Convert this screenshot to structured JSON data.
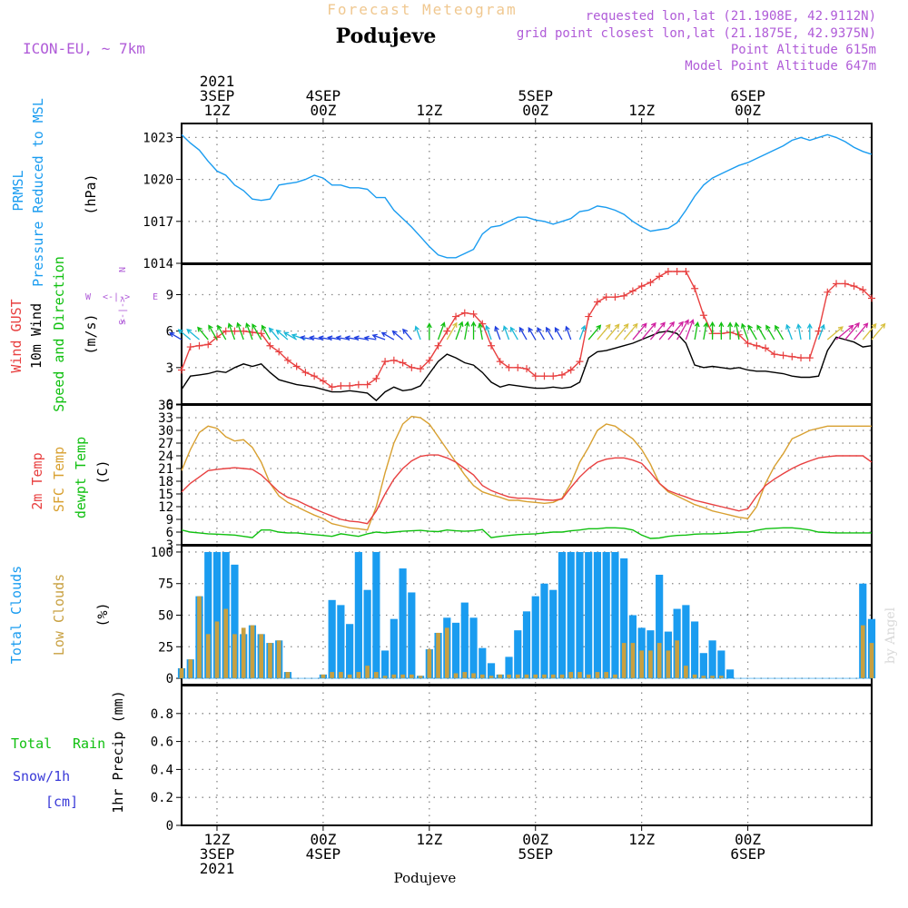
{
  "header": {
    "top_title": "Forecast Meteogram",
    "location": "Podujeve",
    "model": "ICON-EU, ~ 7km",
    "requested": "requested lon,lat (21.1908E, 42.9112N)",
    "grid_point": "grid point closest lon,lat (21.1875E, 42.9375N)",
    "point_alt": "Point Altitude 615m",
    "model_alt": "Model Point Altitude 647m"
  },
  "footer": {
    "location": "Podujeve",
    "watermark": "by Angel"
  },
  "time_axis": {
    "ticks": [
      {
        "hour": 12,
        "lines": [
          "2021",
          "3SEP",
          "12Z"
        ],
        "bottom": [
          "12Z",
          "3SEP",
          "2021"
        ]
      },
      {
        "hour": 24,
        "lines": [
          "4SEP",
          "00Z"
        ],
        "bottom": [
          "00Z",
          "4SEP"
        ]
      },
      {
        "hour": 36,
        "lines": [
          "12Z"
        ],
        "bottom": [
          "12Z"
        ]
      },
      {
        "hour": 48,
        "lines": [
          "5SEP",
          "00Z"
        ],
        "bottom": [
          "00Z",
          "5SEP"
        ]
      },
      {
        "hour": 60,
        "lines": [
          "12Z"
        ],
        "bottom": [
          "12Z"
        ]
      },
      {
        "hour": 72,
        "lines": [
          "6SEP",
          "00Z"
        ],
        "bottom": [
          "00Z",
          "6SEP"
        ]
      }
    ]
  },
  "colors": {
    "frame": "#000000",
    "grid": "#888888",
    "pressure": "#1a9cf0",
    "gust": "#e84040",
    "wind": "#000000",
    "t2m": "#e84040",
    "sfc": "#d8a030",
    "dew": "#10c010",
    "total_clouds": "#1a9cf0",
    "low_clouds": "#c8a040",
    "purple": "#b05cd8",
    "rain": "#10c010",
    "snow": "#3a3ad8",
    "title": "#f0c890"
  },
  "panels": {
    "pressure": {
      "labels": [
        "PRMSL",
        "Pressure Reduced to MSL",
        "(hPa)"
      ],
      "ticks": [
        1014,
        1017,
        1020,
        1023
      ],
      "ylim": [
        1014,
        1024
      ]
    },
    "wind": {
      "labels": [
        "Wind GUST",
        "10m Wind",
        "Speed and Direction",
        "(m/s)"
      ],
      "ticks": [
        0,
        3,
        6,
        9
      ],
      "ylim": [
        0,
        11.5
      ],
      "compass": {
        "n": "N",
        "s": "S",
        "w": "W",
        "e": "E"
      }
    },
    "temp": {
      "labels": [
        "2m Temp",
        "SFC Temp",
        "dewpt Temp",
        "(C)"
      ],
      "ticks": [
        3,
        6,
        9,
        12,
        15,
        18,
        21,
        24,
        27,
        30,
        33,
        36
      ],
      "ylim": [
        3,
        36
      ]
    },
    "clouds": {
      "labels": [
        "Total Clouds",
        "Low Clouds",
        "(%)"
      ],
      "ticks": [
        0,
        25,
        50,
        75,
        100
      ],
      "ylim": [
        -5,
        105
      ]
    },
    "precip": {
      "labels": [
        "Total",
        "Rain",
        "Snow/1h",
        "[cm]",
        "1hr Precip (mm)"
      ],
      "ticks": [
        "0",
        "0.2",
        "0.4",
        "0.6",
        "0.8"
      ],
      "ylim": [
        0,
        1.0
      ]
    }
  },
  "chart_data": {
    "type": "line",
    "x_unit": "hours since 2021-09-03 00Z",
    "x_range": [
      8,
      86
    ],
    "pressure_hpa": {
      "x": [
        8,
        9,
        10,
        11,
        12,
        13,
        14,
        15,
        16,
        17,
        18,
        19,
        20,
        21,
        22,
        23,
        24,
        25,
        26,
        27,
        28,
        29,
        30,
        31,
        32,
        33,
        34,
        35,
        36,
        37,
        38,
        39,
        40,
        41,
        42,
        43,
        44,
        45,
        46,
        47,
        48,
        49,
        50,
        51,
        52,
        53,
        54,
        55,
        56,
        57,
        58,
        59,
        60,
        61,
        62,
        63,
        64,
        65,
        66,
        67,
        68,
        69,
        70,
        71,
        72,
        73,
        74,
        75,
        76,
        77,
        78,
        79,
        80,
        81,
        82,
        83,
        84,
        85,
        86
      ],
      "y": [
        1023.2,
        1022.6,
        1022.1,
        1021.3,
        1020.6,
        1020.3,
        1019.6,
        1019.2,
        1018.6,
        1018.5,
        1018.6,
        1019.6,
        1019.7,
        1019.8,
        1020.0,
        1020.3,
        1020.1,
        1019.6,
        1019.6,
        1019.4,
        1019.4,
        1019.3,
        1018.7,
        1018.7,
        1017.8,
        1017.2,
        1016.6,
        1015.9,
        1015.2,
        1014.6,
        1014.4,
        1014.4,
        1014.7,
        1015.0,
        1016.1,
        1016.6,
        1016.7,
        1017.0,
        1017.3,
        1017.3,
        1017.1,
        1017.0,
        1016.8,
        1017.0,
        1017.2,
        1017.7,
        1017.8,
        1018.1,
        1018.0,
        1017.8,
        1017.5,
        1017.0,
        1016.6,
        1016.3,
        1016.4,
        1016.5,
        1016.9,
        1017.8,
        1018.8,
        1019.6,
        1020.1,
        1020.4,
        1020.7,
        1021.0,
        1021.2,
        1021.5,
        1021.8,
        1022.1,
        1022.4,
        1022.8,
        1023.0,
        1022.8,
        1023.0,
        1023.2,
        1023.0,
        1022.7,
        1022.3,
        1022.0,
        1021.8
      ]
    },
    "gust_ms": {
      "x": [
        8,
        9,
        10,
        11,
        12,
        13,
        14,
        15,
        16,
        17,
        18,
        19,
        20,
        21,
        22,
        23,
        24,
        25,
        26,
        27,
        28,
        29,
        30,
        31,
        32,
        33,
        34,
        35,
        36,
        37,
        38,
        39,
        40,
        41,
        42,
        43,
        44,
        45,
        46,
        47,
        48,
        49,
        50,
        51,
        52,
        53,
        54,
        55,
        56,
        57,
        58,
        59,
        60,
        61,
        62,
        63,
        64,
        65,
        66,
        67,
        68,
        69,
        70,
        71,
        72,
        73,
        74,
        75,
        76,
        77,
        78,
        79,
        80,
        81,
        82,
        83,
        84,
        85,
        86
      ],
      "y": [
        2.8,
        4.7,
        4.8,
        4.9,
        5.5,
        6.0,
        6.0,
        6.0,
        5.9,
        5.8,
        4.8,
        4.3,
        3.6,
        3.1,
        2.6,
        2.3,
        1.9,
        1.4,
        1.5,
        1.5,
        1.6,
        1.6,
        2.1,
        3.5,
        3.6,
        3.4,
        3.0,
        2.9,
        3.6,
        4.8,
        6.0,
        7.2,
        7.5,
        7.4,
        6.6,
        4.8,
        3.5,
        3.0,
        3.0,
        2.9,
        2.3,
        2.3,
        2.3,
        2.4,
        2.8,
        3.5,
        7.2,
        8.4,
        8.8,
        8.8,
        8.9,
        9.3,
        9.7,
        10.0,
        10.5,
        10.9,
        10.9,
        10.9,
        9.5,
        7.3,
        5.8,
        5.8,
        5.9,
        5.7,
        5.0,
        4.8,
        4.6,
        4.1,
        4.0,
        3.9,
        3.8,
        3.8,
        6.0,
        9.2,
        9.9,
        9.9,
        9.7,
        9.4,
        8.7
      ]
    },
    "wind_ms": {
      "x": [
        8,
        9,
        10,
        11,
        12,
        13,
        14,
        15,
        16,
        17,
        18,
        19,
        20,
        21,
        22,
        23,
        24,
        25,
        26,
        27,
        28,
        29,
        30,
        31,
        32,
        33,
        34,
        35,
        36,
        37,
        38,
        39,
        40,
        41,
        42,
        43,
        44,
        45,
        46,
        47,
        48,
        49,
        50,
        51,
        52,
        53,
        54,
        55,
        56,
        57,
        58,
        59,
        60,
        61,
        62,
        63,
        64,
        65,
        66,
        67,
        68,
        69,
        70,
        71,
        72,
        73,
        74,
        75,
        76,
        77,
        78,
        79,
        80,
        81,
        82,
        83,
        84,
        85,
        86
      ],
      "y": [
        1.2,
        2.3,
        2.4,
        2.5,
        2.7,
        2.6,
        3.0,
        3.3,
        3.1,
        3.3,
        2.6,
        2.0,
        1.8,
        1.6,
        1.5,
        1.4,
        1.2,
        1.0,
        1.0,
        1.1,
        1.0,
        0.9,
        0.3,
        1.0,
        1.4,
        1.1,
        1.2,
        1.5,
        2.5,
        3.5,
        4.1,
        3.8,
        3.4,
        3.2,
        2.6,
        1.8,
        1.4,
        1.6,
        1.5,
        1.4,
        1.3,
        1.3,
        1.4,
        1.3,
        1.4,
        1.8,
        3.8,
        4.3,
        4.4,
        4.6,
        4.8,
        5.0,
        5.3,
        5.6,
        5.9,
        6.0,
        5.8,
        5.0,
        3.2,
        3.0,
        3.1,
        3.0,
        2.9,
        3.0,
        2.8,
        2.7,
        2.7,
        2.6,
        2.5,
        2.3,
        2.2,
        2.2,
        2.3,
        4.4,
        5.5,
        5.3,
        5.1,
        4.7,
        4.8
      ]
    },
    "wind_dir_deg": {
      "x": [
        8,
        9,
        10,
        11,
        12,
        13,
        14,
        15,
        16,
        17,
        18,
        19,
        20,
        21,
        22,
        23,
        24,
        25,
        26,
        27,
        28,
        29,
        30,
        31,
        32,
        33,
        34,
        35,
        36,
        37,
        38,
        39,
        40,
        41,
        42,
        43,
        44,
        45,
        46,
        47,
        48,
        49,
        50,
        51,
        52,
        53,
        54,
        55,
        56,
        57,
        58,
        59,
        60,
        61,
        62,
        63,
        64,
        65,
        66,
        67,
        68,
        69,
        70,
        71,
        72,
        73,
        74,
        75,
        76,
        77,
        78,
        79,
        80,
        81,
        82,
        83,
        84,
        85,
        86
      ],
      "deg": [
        120,
        130,
        130,
        140,
        150,
        150,
        160,
        160,
        160,
        150,
        150,
        140,
        130,
        120,
        110,
        100,
        100,
        100,
        100,
        100,
        100,
        100,
        100,
        110,
        120,
        130,
        140,
        160,
        180,
        200,
        210,
        200,
        190,
        180,
        170,
        160,
        160,
        160,
        150,
        150,
        150,
        150,
        150,
        150,
        160,
        200,
        220,
        220,
        220,
        220,
        220,
        220,
        220,
        220,
        220,
        220,
        210,
        200,
        190,
        190,
        180,
        180,
        180,
        170,
        160,
        150,
        150,
        150,
        150,
        160,
        170,
        180,
        200,
        230,
        230,
        220,
        220,
        220,
        220
      ]
    },
    "temp_c": {
      "x": [
        8,
        9,
        10,
        11,
        12,
        13,
        14,
        15,
        16,
        17,
        18,
        19,
        20,
        21,
        22,
        23,
        24,
        25,
        26,
        27,
        28,
        29,
        30,
        31,
        32,
        33,
        34,
        35,
        36,
        37,
        38,
        39,
        40,
        41,
        42,
        43,
        44,
        45,
        46,
        47,
        48,
        49,
        50,
        51,
        52,
        53,
        54,
        55,
        56,
        57,
        58,
        59,
        60,
        61,
        62,
        63,
        64,
        65,
        66,
        67,
        68,
        69,
        70,
        71,
        72,
        73,
        74,
        75,
        76,
        77,
        78,
        79,
        80,
        81,
        82,
        83,
        84,
        85,
        86
      ],
      "t2m": [
        15.5,
        17.5,
        19.0,
        20.5,
        20.8,
        21.0,
        21.2,
        21.0,
        20.8,
        19.5,
        17.5,
        15.5,
        14.2,
        13.5,
        12.5,
        11.5,
        10.6,
        9.8,
        9.0,
        8.6,
        8.4,
        8.0,
        11.0,
        15.0,
        18.5,
        21.0,
        22.8,
        23.9,
        24.2,
        24.2,
        23.5,
        22.5,
        21.0,
        19.5,
        17.0,
        15.8,
        15.0,
        14.3,
        14.0,
        14.0,
        13.8,
        13.6,
        13.5,
        13.8,
        16.5,
        19.0,
        21.0,
        22.5,
        23.2,
        23.5,
        23.5,
        23.0,
        22.2,
        20.0,
        17.5,
        15.8,
        15.0,
        14.3,
        13.5,
        13.0,
        12.5,
        12.0,
        11.5,
        11.0,
        11.5,
        14.5,
        17.0,
        18.5,
        19.8,
        21.0,
        22.0,
        22.8,
        23.5,
        23.8,
        24.0,
        24.0,
        24.0,
        24.0,
        22.5
      ],
      "sfc": [
        20.5,
        25.5,
        29.5,
        31.0,
        30.5,
        28.5,
        27.5,
        27.8,
        26.0,
        22.5,
        17.5,
        14.5,
        13.0,
        12.0,
        11.0,
        10.0,
        9.2,
        8.0,
        7.5,
        7.0,
        6.8,
        6.5,
        12.0,
        20.0,
        27.0,
        31.5,
        33.3,
        33.0,
        31.5,
        28.5,
        25.5,
        22.5,
        19.5,
        17.0,
        15.5,
        14.8,
        14.2,
        13.5,
        13.5,
        13.2,
        13.0,
        12.8,
        13.0,
        14.0,
        17.5,
        22.5,
        26.0,
        30.0,
        31.5,
        31.0,
        29.5,
        28.0,
        25.5,
        22.0,
        17.5,
        15.5,
        14.5,
        13.5,
        12.5,
        11.8,
        11.0,
        10.5,
        10.0,
        9.5,
        9.2,
        12.0,
        17.5,
        21.5,
        24.5,
        28.0,
        29.0,
        30.0,
        30.5,
        31.0,
        31.0,
        31.0,
        31.0,
        31.0,
        31.0
      ],
      "dew": [
        6.5,
        6.0,
        5.8,
        5.6,
        5.5,
        5.4,
        5.3,
        5.0,
        4.7,
        6.5,
        6.5,
        6.0,
        5.8,
        5.8,
        5.6,
        5.4,
        5.2,
        5.0,
        5.6,
        5.3,
        5.0,
        5.6,
        6.0,
        5.8,
        6.0,
        6.2,
        6.3,
        6.4,
        6.2,
        6.1,
        6.5,
        6.3,
        6.2,
        6.3,
        6.6,
        4.7,
        5.0,
        5.2,
        5.4,
        5.5,
        5.6,
        5.8,
        6.0,
        6.0,
        6.3,
        6.5,
        6.8,
        6.8,
        7.0,
        7.0,
        6.9,
        6.5,
        5.3,
        4.5,
        4.6,
        5.0,
        5.2,
        5.3,
        5.5,
        5.6,
        5.6,
        5.7,
        5.8,
        6.0,
        6.0,
        6.4,
        6.8,
        6.9,
        7.0,
        7.0,
        6.8,
        6.5,
        6.0,
        5.9,
        5.8,
        5.8,
        5.8,
        5.8,
        5.8
      ]
    },
    "clouds_pct": {
      "x": [
        8,
        9,
        10,
        11,
        12,
        13,
        14,
        15,
        16,
        17,
        18,
        19,
        20,
        21,
        22,
        23,
        24,
        25,
        26,
        27,
        28,
        29,
        30,
        31,
        32,
        33,
        34,
        35,
        36,
        37,
        38,
        39,
        40,
        41,
        42,
        43,
        44,
        45,
        46,
        47,
        48,
        49,
        50,
        51,
        52,
        53,
        54,
        55,
        56,
        57,
        58,
        59,
        60,
        61,
        62,
        63,
        64,
        65,
        66,
        67,
        68,
        69,
        70,
        71,
        72,
        73,
        74,
        75,
        76,
        77,
        78,
        79,
        80,
        81,
        82,
        83,
        84,
        85,
        86
      ],
      "total": [
        8,
        15,
        65,
        100,
        100,
        100,
        90,
        35,
        42,
        35,
        28,
        30,
        5,
        0,
        0,
        0,
        3,
        62,
        58,
        43,
        100,
        70,
        100,
        22,
        47,
        87,
        68,
        2,
        23,
        36,
        48,
        44,
        60,
        48,
        24,
        12,
        3,
        17,
        38,
        53,
        65,
        75,
        70,
        100,
        100,
        100,
        100,
        100,
        100,
        100,
        95,
        50,
        40,
        38,
        82,
        37,
        55,
        58,
        45,
        20,
        30,
        22,
        7,
        0,
        0,
        0,
        0,
        0,
        0,
        0,
        0,
        0,
        0,
        0,
        0,
        0,
        0,
        75,
        47
      ],
      "low": [
        8,
        15,
        65,
        35,
        45,
        55,
        35,
        40,
        42,
        35,
        28,
        30,
        5,
        0,
        0,
        0,
        3,
        5,
        5,
        3,
        5,
        10,
        5,
        2,
        3,
        3,
        3,
        2,
        23,
        36,
        40,
        4,
        5,
        4,
        3,
        2,
        3,
        3,
        3,
        3,
        3,
        3,
        3,
        3,
        5,
        5,
        3,
        5,
        5,
        3,
        28,
        28,
        22,
        22,
        28,
        22,
        30,
        10,
        3,
        2,
        2,
        2,
        0,
        0,
        0,
        0,
        0,
        0,
        0,
        0,
        0,
        0,
        0,
        0,
        0,
        0,
        0,
        42,
        28
      ]
    },
    "precip_mm": {
      "x": [
        8,
        24,
        48,
        72,
        86
      ],
      "rain": [
        0,
        0,
        0,
        0,
        0
      ],
      "snow": [
        0,
        0,
        0,
        0,
        0
      ]
    }
  }
}
